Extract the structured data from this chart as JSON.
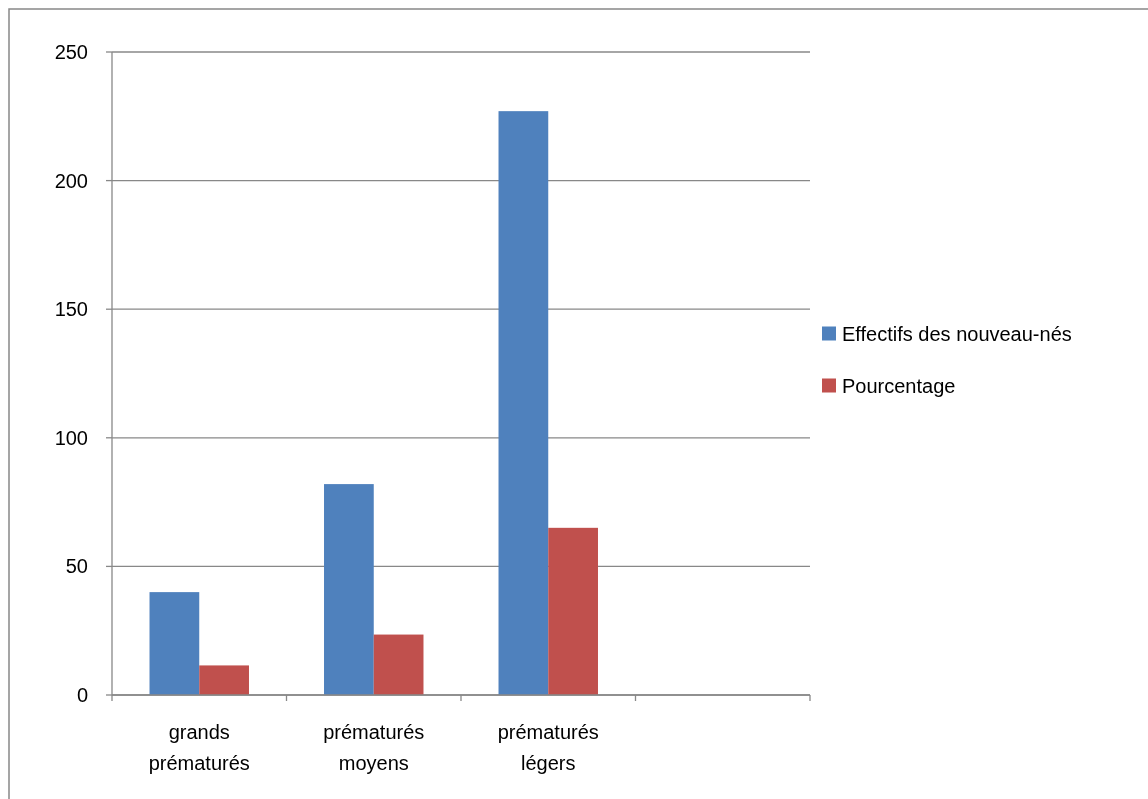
{
  "chart_data": {
    "type": "bar",
    "categories": [
      "grands prématurés",
      "prématurés moyens",
      "prématurés légers",
      null
    ],
    "series": [
      {
        "name": "Effectifs des nouveau-nés",
        "color": "#4f81bd",
        "values": [
          40,
          82,
          227,
          null
        ]
      },
      {
        "name": "Pourcentage",
        "color": "#c0504d",
        "values": [
          11.5,
          23.5,
          65,
          null
        ]
      }
    ],
    "ylim": [
      0,
      250
    ],
    "yticks": [
      0,
      50,
      100,
      150,
      200,
      250
    ],
    "grid": "y",
    "legend": "right"
  }
}
